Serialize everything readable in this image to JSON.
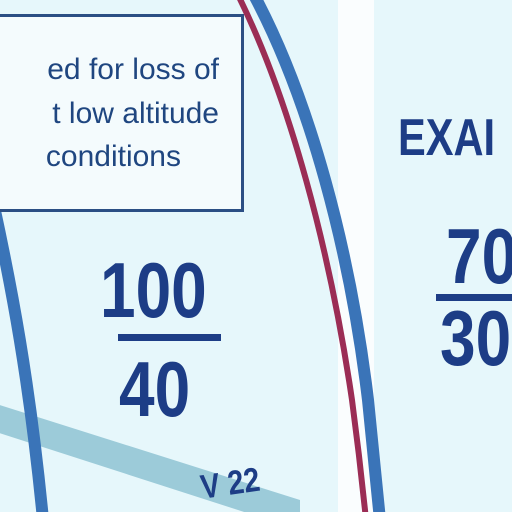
{
  "map": {
    "note": {
      "line1": "ed for loss of",
      "line2": "t low altitude",
      "line3": "conditions"
    },
    "altitude_block": {
      "top": "100",
      "bottom": "40"
    },
    "example": {
      "label": "EXAI",
      "top": "70",
      "bottom": "30"
    },
    "airway": {
      "label": "V 22"
    },
    "colors": {
      "background": "#e6f7fb",
      "boundary_blue": "#3a74b8",
      "boundary_maroon": "#9b2d55",
      "airway": "#9ccbd9",
      "text": "#1d3d86"
    }
  }
}
